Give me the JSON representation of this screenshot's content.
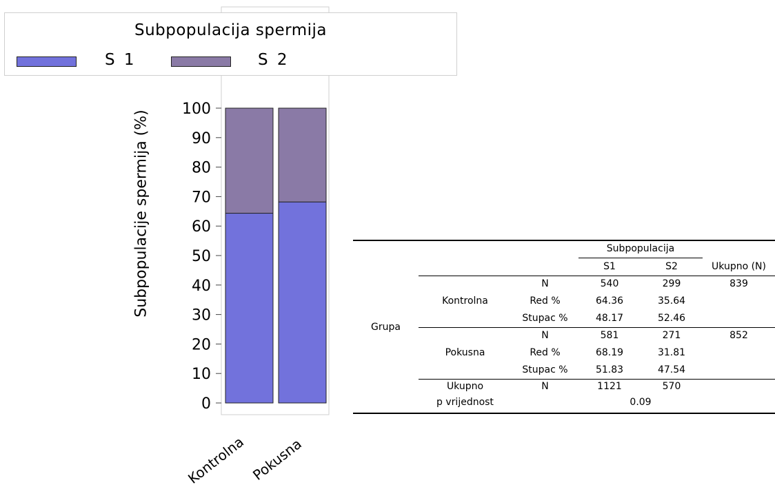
{
  "chart_data": {
    "type": "bar",
    "stacked": true,
    "categories": [
      "Kontrolna",
      "Pokusna"
    ],
    "series": [
      {
        "name": "S 1",
        "values": [
          64.36,
          68.19
        ],
        "color": "#7272dc"
      },
      {
        "name": "S 2",
        "values": [
          35.64,
          31.81
        ],
        "color": "#8a7aa6"
      }
    ],
    "ylabel": "Subpopulacije spermija (%)",
    "ylim": [
      0,
      100
    ],
    "yticks": [
      0,
      10,
      20,
      30,
      40,
      50,
      60,
      70,
      80,
      90,
      100
    ],
    "legend": {
      "title": "Subpopulacija spermija",
      "placement": "top"
    },
    "grid": false
  },
  "table": {
    "header_group": "Subpopulacija",
    "col_s1": "S1",
    "col_s2": "S2",
    "col_total": "Ukupno (N)",
    "row_group_label": "Grupa",
    "groups": [
      {
        "name": "Kontrolna",
        "rows": [
          {
            "stat": "N",
            "s1": "540",
            "s2": "299",
            "total": "839"
          },
          {
            "stat": "Red %",
            "s1": "64.36",
            "s2": "35.64",
            "total": ""
          },
          {
            "stat": "Stupac %",
            "s1": "48.17",
            "s2": "52.46",
            "total": ""
          }
        ]
      },
      {
        "name": "Pokusna",
        "rows": [
          {
            "stat": "N",
            "s1": "581",
            "s2": "271",
            "total": "852"
          },
          {
            "stat": "Red %",
            "s1": "68.19",
            "s2": "31.81",
            "total": ""
          },
          {
            "stat": "Stupac %",
            "s1": "51.83",
            "s2": "47.54",
            "total": ""
          }
        ]
      }
    ],
    "total_row": {
      "label": "Ukupno",
      "stat": "N",
      "s1": "1121",
      "s2": "570"
    },
    "p_row": {
      "label": "p vrijednost",
      "value": "0.09"
    }
  }
}
